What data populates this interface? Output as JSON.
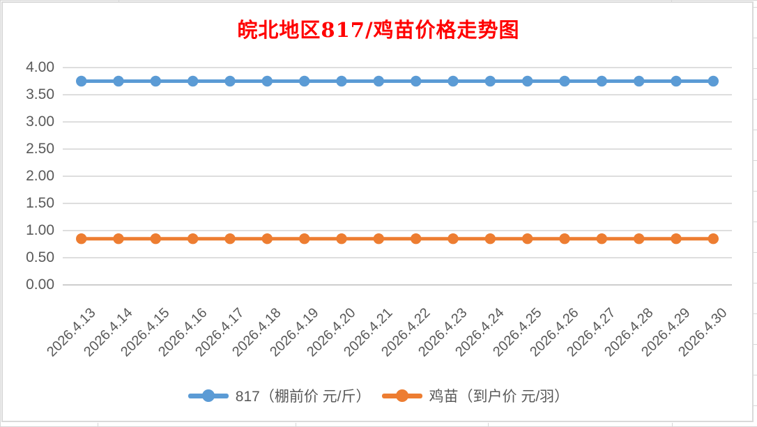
{
  "title": {
    "text": "皖北地区817/鸡苗价格走势图"
  },
  "chart_data": {
    "type": "line",
    "title": "皖北地区817/鸡苗价格走势图",
    "categories": [
      "2026.4.13",
      "2026.4.14",
      "2026.4.15",
      "2026.4.16",
      "2026.4.17",
      "2026.4.18",
      "2026.4.19",
      "2026.4.20",
      "2026.4.21",
      "2026.4.22",
      "2026.4.23",
      "2026.4.24",
      "2026.4.25",
      "2026.4.26",
      "2026.4.27",
      "2026.4.28",
      "2026.4.29",
      "2026.4.30"
    ],
    "series": [
      {
        "name": "817（棚前价 元/斤）",
        "color": "#5B9BD5",
        "values": [
          3.75,
          3.75,
          3.75,
          3.75,
          3.75,
          3.75,
          3.75,
          3.75,
          3.75,
          3.75,
          3.75,
          3.75,
          3.75,
          3.75,
          3.75,
          3.75,
          3.75,
          3.75
        ]
      },
      {
        "name": "鸡苗（到户价 元/羽）",
        "color": "#ED7D31",
        "values": [
          0.85,
          0.85,
          0.85,
          0.85,
          0.85,
          0.85,
          0.85,
          0.85,
          0.85,
          0.85,
          0.85,
          0.85,
          0.85,
          0.85,
          0.85,
          0.85,
          0.85,
          0.85
        ]
      }
    ],
    "ylim": [
      0,
      4.0
    ],
    "ytick_step": 0.5,
    "ytick_labels": [
      "0.00",
      "0.50",
      "1.00",
      "1.50",
      "2.00",
      "2.50",
      "3.00",
      "3.50",
      "4.00"
    ],
    "xlabel": "",
    "ylabel": "",
    "grid": "horizontal",
    "legend_position": "bottom",
    "colors": {
      "title": "#FF0000",
      "axis_text": "#595959",
      "gridline": "#D9D9D9",
      "zero_line": "#C6C6C6"
    }
  }
}
